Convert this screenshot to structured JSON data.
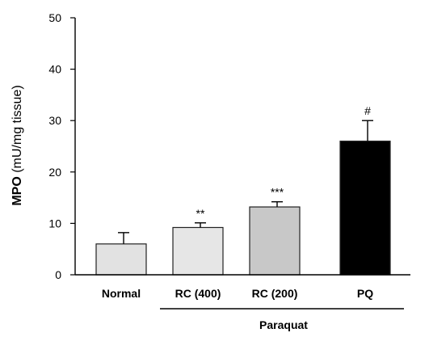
{
  "chart_data": {
    "type": "bar",
    "title": "",
    "ylabel_bold": "MPO",
    "ylabel_rest": " (mU/mg tissue)",
    "xlabel": "",
    "ylim": [
      0,
      50
    ],
    "yticks": [
      "0",
      "10",
      "20",
      "30",
      "40",
      "50"
    ],
    "categories": [
      "Normal",
      "RC (400)",
      "RC (200)",
      "PQ"
    ],
    "values": [
      6.0,
      9.2,
      13.2,
      26.0
    ],
    "errors": [
      2.2,
      0.9,
      1.0,
      4.0
    ],
    "annotations": [
      "",
      "**",
      "***",
      "#"
    ],
    "bar_colors": [
      "#e2e2e2",
      "#e6e6e6",
      "#c8c8c8",
      "#000000"
    ],
    "group": {
      "label": "Paraquat",
      "covers": [
        "RC (400)",
        "RC (200)",
        "PQ"
      ]
    },
    "grid": false
  }
}
